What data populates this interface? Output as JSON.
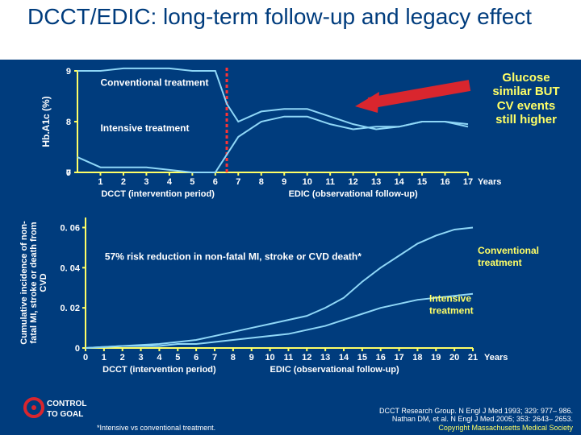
{
  "title": "DCCT/EDIC: long-term follow-up and legacy effect",
  "title_color": "#003c7d",
  "title_fontsize": 28,
  "background_color": "#003c7d",
  "top_panel_bg": "#ffffff",
  "top_panel_height": 74,
  "text_color": "#ffffff",
  "chart1": {
    "type": "line",
    "y_label": "Hb.A1c (%)",
    "y_label_fontsize": 12,
    "ylim": [
      7,
      9
    ],
    "yticks": [
      0,
      7,
      8,
      9
    ],
    "xlim": [
      0,
      17
    ],
    "xticks": [
      1,
      2,
      3,
      4,
      5,
      6,
      7,
      8,
      9,
      10,
      11,
      12,
      13,
      14,
      15,
      16,
      17
    ],
    "x_axis_label_right": "Years",
    "sub_labels": {
      "left": "DCCT (intervention period)",
      "right": "EDIC (observational follow-up)"
    },
    "divider_x": 6.5,
    "divider_color": "#ff3333",
    "divider_dash": "4,3",
    "series": [
      {
        "name": "Conventional treatment",
        "label_x": 1.0,
        "label_y": 8.9,
        "color": "#8fd7f7",
        "x": [
          0,
          1,
          2,
          3,
          4,
          5,
          6,
          6.5,
          7,
          8,
          9,
          10,
          11,
          12,
          13,
          14,
          15,
          16,
          17
        ],
        "y": [
          9.0,
          9.0,
          9.05,
          9.05,
          9.05,
          9.0,
          9.0,
          8.35,
          8.0,
          8.2,
          8.25,
          8.25,
          8.1,
          7.95,
          7.85,
          7.9,
          8.0,
          8.0,
          7.95
        ]
      },
      {
        "name": "Intensive treatment",
        "label_x": 1.0,
        "label_y": 8.0,
        "color": "#8fd7f7",
        "x": [
          0,
          1,
          2,
          3,
          4,
          5,
          6,
          6.5,
          7,
          8,
          9,
          10,
          11,
          12,
          13,
          14,
          15,
          16,
          17
        ],
        "y": [
          7.3,
          7.1,
          7.1,
          7.1,
          7.05,
          7.0,
          7.0,
          7.35,
          7.7,
          8.0,
          8.1,
          8.1,
          7.95,
          7.85,
          7.9,
          7.9,
          8.0,
          8.0,
          7.9
        ]
      }
    ],
    "axis_color": "#ffff66",
    "tick_fontsize": 11
  },
  "callout": {
    "text": "Glucose similar BUT CV events still higher",
    "arrow_color": "#d9262e",
    "fontsize": 15,
    "color": "#ffff66"
  },
  "chart2": {
    "type": "line",
    "y_label": "Cumulative incidence of non-fatal MI, stroke or death from CVD",
    "y_label_fontsize": 11,
    "ylim": [
      0,
      0.065
    ],
    "yticks": [
      0,
      0.02,
      0.04,
      0.06
    ],
    "ytick_labels": [
      "0",
      "0. 02",
      "0. 04",
      "0. 06"
    ],
    "xlim": [
      0,
      21
    ],
    "xticks": [
      0,
      1,
      2,
      3,
      4,
      5,
      6,
      7,
      8,
      9,
      10,
      11,
      12,
      13,
      14,
      15,
      16,
      17,
      18,
      19,
      20,
      21
    ],
    "x_axis_label_right": "Years",
    "sub_labels": {
      "left": "DCCT (intervention period)",
      "right": "EDIC (observational follow-up)"
    },
    "series": [
      {
        "name": "Conventional treatment",
        "label_pos": "right-upper",
        "color": "#8fd7f7",
        "x": [
          0,
          2,
          4,
          5,
          6,
          7,
          8,
          9,
          10,
          11,
          12,
          13,
          14,
          15,
          16,
          17,
          18,
          19,
          20,
          21
        ],
        "y": [
          0.0,
          0.001,
          0.002,
          0.003,
          0.004,
          0.006,
          0.008,
          0.01,
          0.012,
          0.014,
          0.016,
          0.02,
          0.025,
          0.033,
          0.04,
          0.046,
          0.052,
          0.056,
          0.059,
          0.06
        ]
      },
      {
        "name": "Intensive treatment",
        "label_pos": "right-lower",
        "color": "#8fd7f7",
        "x": [
          0,
          2,
          4,
          5,
          6,
          7,
          8,
          9,
          10,
          11,
          12,
          13,
          14,
          15,
          16,
          17,
          18,
          19,
          20,
          21
        ],
        "y": [
          0.0,
          0.001,
          0.001,
          0.002,
          0.002,
          0.003,
          0.004,
          0.005,
          0.006,
          0.007,
          0.009,
          0.011,
          0.014,
          0.017,
          0.02,
          0.022,
          0.024,
          0.025,
          0.026,
          0.027
        ]
      }
    ],
    "risk_text": "57% risk reduction in non-fatal MI, stroke or CVD death*",
    "axis_color": "#ffff66",
    "tick_fontsize": 11,
    "label_color": "#ffff66"
  },
  "footer": {
    "note": "*Intensive vs conventional treatment.",
    "ref1": "DCCT Research Group. N Engl J Med 1993; 329: 977– 986.",
    "ref2": "Nathan DM, et al. N Engl J Med 2005; 353: 2643– 2653.",
    "copyright": "Copyright Massachusetts Medical Society",
    "copyright_color": "#ffff66"
  },
  "logo": {
    "top": "CONTROL",
    "bottom": "TO GOAL",
    "ring_color": "#d9262e"
  }
}
